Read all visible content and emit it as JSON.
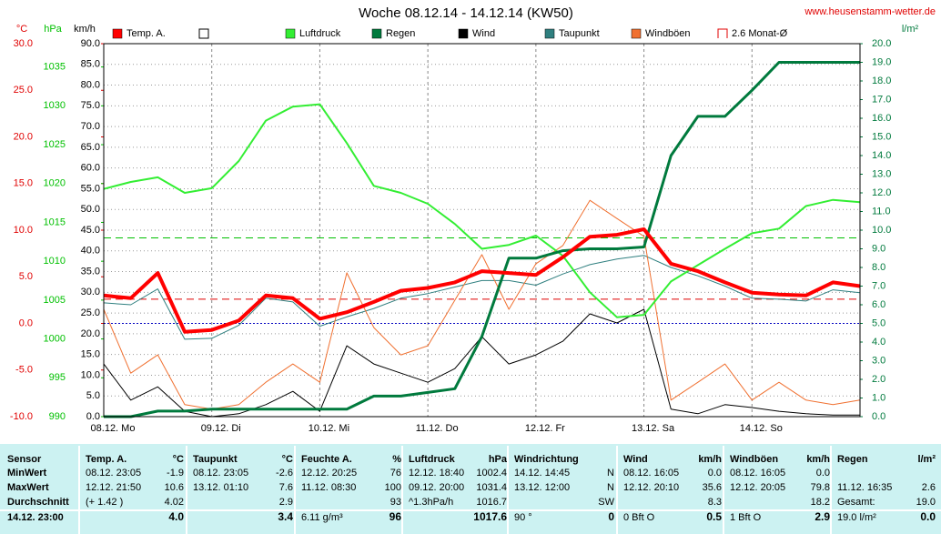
{
  "chart_data": {
    "type": "line",
    "title": "Woche 08.12.14 - 14.12.14 (KW50)",
    "source": "www.heusenstamm-wetter.de",
    "xlim": [
      0,
      168
    ],
    "xticks": [
      {
        "value": 0,
        "label": "08.12. Mo"
      },
      {
        "value": 24,
        "label": "09.12. Di"
      },
      {
        "value": 48,
        "label": "10.12. Mi"
      },
      {
        "value": 72,
        "label": "11.12. Do"
      },
      {
        "value": 96,
        "label": "12.12. Fr"
      },
      {
        "value": 120,
        "label": "13.12. Sa"
      },
      {
        "value": 144,
        "label": "14.12. So"
      }
    ],
    "grid": true,
    "y_axes": [
      {
        "id": "temp",
        "unit": "°C",
        "color": "#e00000",
        "side": "left",
        "lim": [
          -10,
          30
        ],
        "ticks": [
          {
            "value": 30,
            "label": "30.0"
          },
          {
            "value": 25,
            "label": "25.0"
          },
          {
            "value": 20,
            "label": "20.0"
          },
          {
            "value": 15,
            "label": "15.0"
          },
          {
            "value": 10,
            "label": "10.0"
          },
          {
            "value": 5,
            "label": "5.0"
          },
          {
            "value": 0,
            "label": "0.0"
          },
          {
            "value": -5,
            "label": "-5.0"
          },
          {
            "value": -10,
            "label": "-10.0"
          }
        ]
      },
      {
        "id": "hpa",
        "unit": "hPa",
        "color": "#00c000",
        "side": "left",
        "lim": [
          990,
          1038
        ],
        "ticks": [
          1035,
          1030,
          1025,
          1020,
          1015,
          1010,
          1005,
          1000,
          995,
          990
        ]
      },
      {
        "id": "wind",
        "unit": "km/h",
        "color": "#000000",
        "side": "left",
        "lim": [
          0,
          90
        ],
        "grid": true,
        "ticks": [
          {
            "value": 90,
            "label": "90.0"
          },
          {
            "value": 85,
            "label": "85.0"
          },
          {
            "value": 80,
            "label": "80.0"
          },
          {
            "value": 75,
            "label": "75.0"
          },
          {
            "value": 70,
            "label": "70.0"
          },
          {
            "value": 65,
            "label": "65.0"
          },
          {
            "value": 60,
            "label": "60.0"
          },
          {
            "value": 55,
            "label": "55.0"
          },
          {
            "value": 50,
            "label": "50.0"
          },
          {
            "value": 45,
            "label": "45.0"
          },
          {
            "value": 40,
            "label": "40.0"
          },
          {
            "value": 35,
            "label": "35.0"
          },
          {
            "value": 30,
            "label": "30.0"
          },
          {
            "value": 25,
            "label": "25.0"
          },
          {
            "value": 20,
            "label": "20.0"
          },
          {
            "value": 15,
            "label": "15.0"
          },
          {
            "value": 10,
            "label": "10.0"
          },
          {
            "value": 5,
            "label": "5.0"
          },
          {
            "value": 0,
            "label": "0.0"
          }
        ]
      },
      {
        "id": "rain",
        "unit": "l/m²",
        "color": "#007a3d",
        "side": "right",
        "lim": [
          0,
          20
        ],
        "ticks": [
          {
            "value": 20,
            "label": "20.0"
          },
          {
            "value": 19,
            "label": "19.0"
          },
          {
            "value": 18,
            "label": "18.0"
          },
          {
            "value": 17,
            "label": "17.0"
          },
          {
            "value": 16,
            "label": "16.0"
          },
          {
            "value": 15,
            "label": "15.0"
          },
          {
            "value": 14,
            "label": "14.0"
          },
          {
            "value": 13,
            "label": "13.0"
          },
          {
            "value": 12,
            "label": "12.0"
          },
          {
            "value": 11,
            "label": "11.0"
          },
          {
            "value": 10,
            "label": "10.0"
          },
          {
            "value": 9,
            "label": "9.0"
          },
          {
            "value": 8,
            "label": "8.0"
          },
          {
            "value": 7,
            "label": "7.0"
          },
          {
            "value": 6,
            "label": "6.0"
          },
          {
            "value": 5,
            "label": "5.0"
          },
          {
            "value": 4,
            "label": "4.0"
          },
          {
            "value": 3,
            "label": "3.0"
          },
          {
            "value": 2,
            "label": "2.0"
          },
          {
            "value": 1,
            "label": "1.0"
          },
          {
            "value": 0,
            "label": "0.0"
          }
        ]
      }
    ],
    "x": [
      0,
      6,
      12,
      18,
      24,
      30,
      36,
      42,
      48,
      54,
      60,
      66,
      72,
      78,
      84,
      90,
      96,
      102,
      108,
      114,
      120,
      126,
      132,
      138,
      144,
      150,
      156,
      162,
      168
    ],
    "series": [
      {
        "name": "Temp. A.",
        "color": "#ff0000",
        "axis": "temp",
        "width": 4,
        "values": [
          3.0,
          2.7,
          5.4,
          -0.9,
          -0.7,
          0.3,
          3.0,
          2.7,
          0.5,
          1.2,
          2.3,
          3.5,
          3.8,
          4.4,
          5.6,
          5.4,
          5.2,
          7.1,
          9.3,
          9.5,
          10.1,
          6.4,
          5.6,
          4.4,
          3.3,
          3.1,
          3.0,
          4.4,
          4.0
        ]
      },
      {
        "name": "Luftdruck",
        "color": "#33ee33",
        "axis": "hpa",
        "width": 2,
        "values": [
          1019.3,
          1020.2,
          1020.8,
          1018.8,
          1019.4,
          1022.9,
          1028.1,
          1029.9,
          1030.2,
          1025.2,
          1019.7,
          1018.8,
          1017.4,
          1014.8,
          1011.6,
          1012.1,
          1013.3,
          1010.7,
          1006.0,
          1002.8,
          1003.1,
          1007.4,
          1009.5,
          1011.6,
          1013.6,
          1014.2,
          1017.1,
          1017.9,
          1017.6
        ]
      },
      {
        "name": "Regen",
        "color": "#007a3d",
        "axis": "rain",
        "width": 3,
        "values": [
          0,
          0,
          0.3,
          0.3,
          0.4,
          0.4,
          0.4,
          0.4,
          0.4,
          0.4,
          1.1,
          1.1,
          1.3,
          1.5,
          4.3,
          8.5,
          8.5,
          8.9,
          9.0,
          9.0,
          9.1,
          14.0,
          16.1,
          16.1,
          17.5,
          19.0,
          19.0,
          19.0,
          19.0
        ]
      },
      {
        "name": "Wind",
        "color": "#000000",
        "axis": "wind",
        "width": 1,
        "values": [
          12.7,
          4.0,
          7.2,
          1.3,
          0,
          0.7,
          2.9,
          6.1,
          1.3,
          17.1,
          12.7,
          10.5,
          8.3,
          11.6,
          19.3,
          12.7,
          14.9,
          18.2,
          24.8,
          22.6,
          25.9,
          1.8,
          0.7,
          2.9,
          2.2,
          1.3,
          0.7,
          0.4,
          0.4
        ]
      },
      {
        "name": "Taupunkt",
        "color": "#2f7f7f",
        "axis": "temp",
        "width": 1,
        "values": [
          2.2,
          2.0,
          3.7,
          -1.7,
          -1.6,
          -0.2,
          2.7,
          2.3,
          -0.3,
          0.7,
          1.6,
          2.7,
          3.2,
          3.9,
          4.6,
          4.6,
          4.1,
          5.3,
          6.3,
          6.9,
          7.3,
          6.0,
          5.1,
          4.0,
          2.7,
          2.6,
          2.4,
          3.6,
          3.3
        ]
      },
      {
        "name": "Windböen",
        "color": "#f07030",
        "axis": "wind",
        "width": 1,
        "values": [
          25.9,
          10.5,
          14.9,
          2.9,
          1.8,
          2.9,
          8.3,
          12.7,
          8.3,
          34.7,
          21.5,
          14.9,
          17.1,
          28.1,
          39.1,
          25.9,
          36.9,
          41.3,
          52.2,
          47.8,
          43.5,
          4.0,
          8.3,
          12.7,
          4.0,
          8.3,
          4.0,
          2.9,
          4.0
        ]
      }
    ],
    "blank_legend": {
      "color": "#ffffff"
    },
    "reference_lines": [
      {
        "name": "2.6 Monat-Ø",
        "axis": "temp",
        "value": 2.6,
        "color": "#e00000",
        "dash": "8,5"
      },
      {
        "axis": "hpa",
        "value": 1013,
        "color": "#00c000",
        "dash": "8,5"
      },
      {
        "axis": "temp",
        "value": 0,
        "color": "#0000c0",
        "dash": "2,2"
      }
    ]
  },
  "table": {
    "row_labels": [
      "Sensor",
      "MinWert",
      "MaxWert",
      "Durchschnitt",
      "14.12. 23:00"
    ],
    "groups": [
      {
        "header": "Temp. A.",
        "unit": "°C",
        "rows": [
          [
            "08.12.  23:05",
            "-1.9"
          ],
          [
            "12.12.  21:50",
            "10.6"
          ],
          [
            "(+ 1.42 )",
            "4.02"
          ],
          [
            "4.0"
          ]
        ]
      },
      {
        "header": "Taupunkt",
        "unit": "°C",
        "rows": [
          [
            "08.12.  23:05",
            "-2.6"
          ],
          [
            "13.12.  01:10",
            "7.6"
          ],
          [
            "2.9"
          ],
          [
            "3.4"
          ]
        ]
      },
      {
        "header": "Feuchte A.",
        "unit": "%",
        "rows": [
          [
            "12.12.  20:25",
            "76"
          ],
          [
            "11.12.  08:30",
            "100"
          ],
          [
            "93"
          ],
          [
            "6.11 g/m³",
            "96"
          ]
        ]
      },
      {
        "header": "Luftdruck",
        "unit": "hPa",
        "rows": [
          [
            "12.12.  18:40",
            "1002.4"
          ],
          [
            "09.12.  20:00",
            "1031.4"
          ],
          [
            "^1.3hPa/h",
            "1016.7"
          ],
          [
            "1017.6"
          ]
        ]
      },
      {
        "header": "Windrichtung",
        "rows": [
          [
            "14.12.  14:45",
            "N"
          ],
          [
            "13.12.  12:00",
            "N"
          ],
          [
            "SW"
          ],
          [
            "90 °",
            "0"
          ]
        ]
      },
      {
        "header": "Wind",
        "unit": "km/h",
        "rows": [
          [
            "08.12.  16:05",
            "0.0"
          ],
          [
            "12.12.  20:10",
            "35.6"
          ],
          [
            "8.3"
          ],
          [
            "0 Bft O",
            "0.5"
          ]
        ]
      },
      {
        "header": "Windböen",
        "unit": "km/h",
        "rows": [
          [
            "08.12.  16:05",
            "0.0"
          ],
          [
            "12.12.  20:05",
            "79.8"
          ],
          [
            "18.2"
          ],
          [
            "1 Bft O",
            "2.9"
          ]
        ]
      },
      {
        "header": "Regen",
        "unit": "l/m²",
        "rows": [
          [],
          [
            "11.12.  16:35",
            "2.6"
          ],
          [
            "Gesamt:",
            "19.0"
          ],
          [
            "19.0 l/m²",
            "0.0"
          ]
        ]
      }
    ]
  }
}
